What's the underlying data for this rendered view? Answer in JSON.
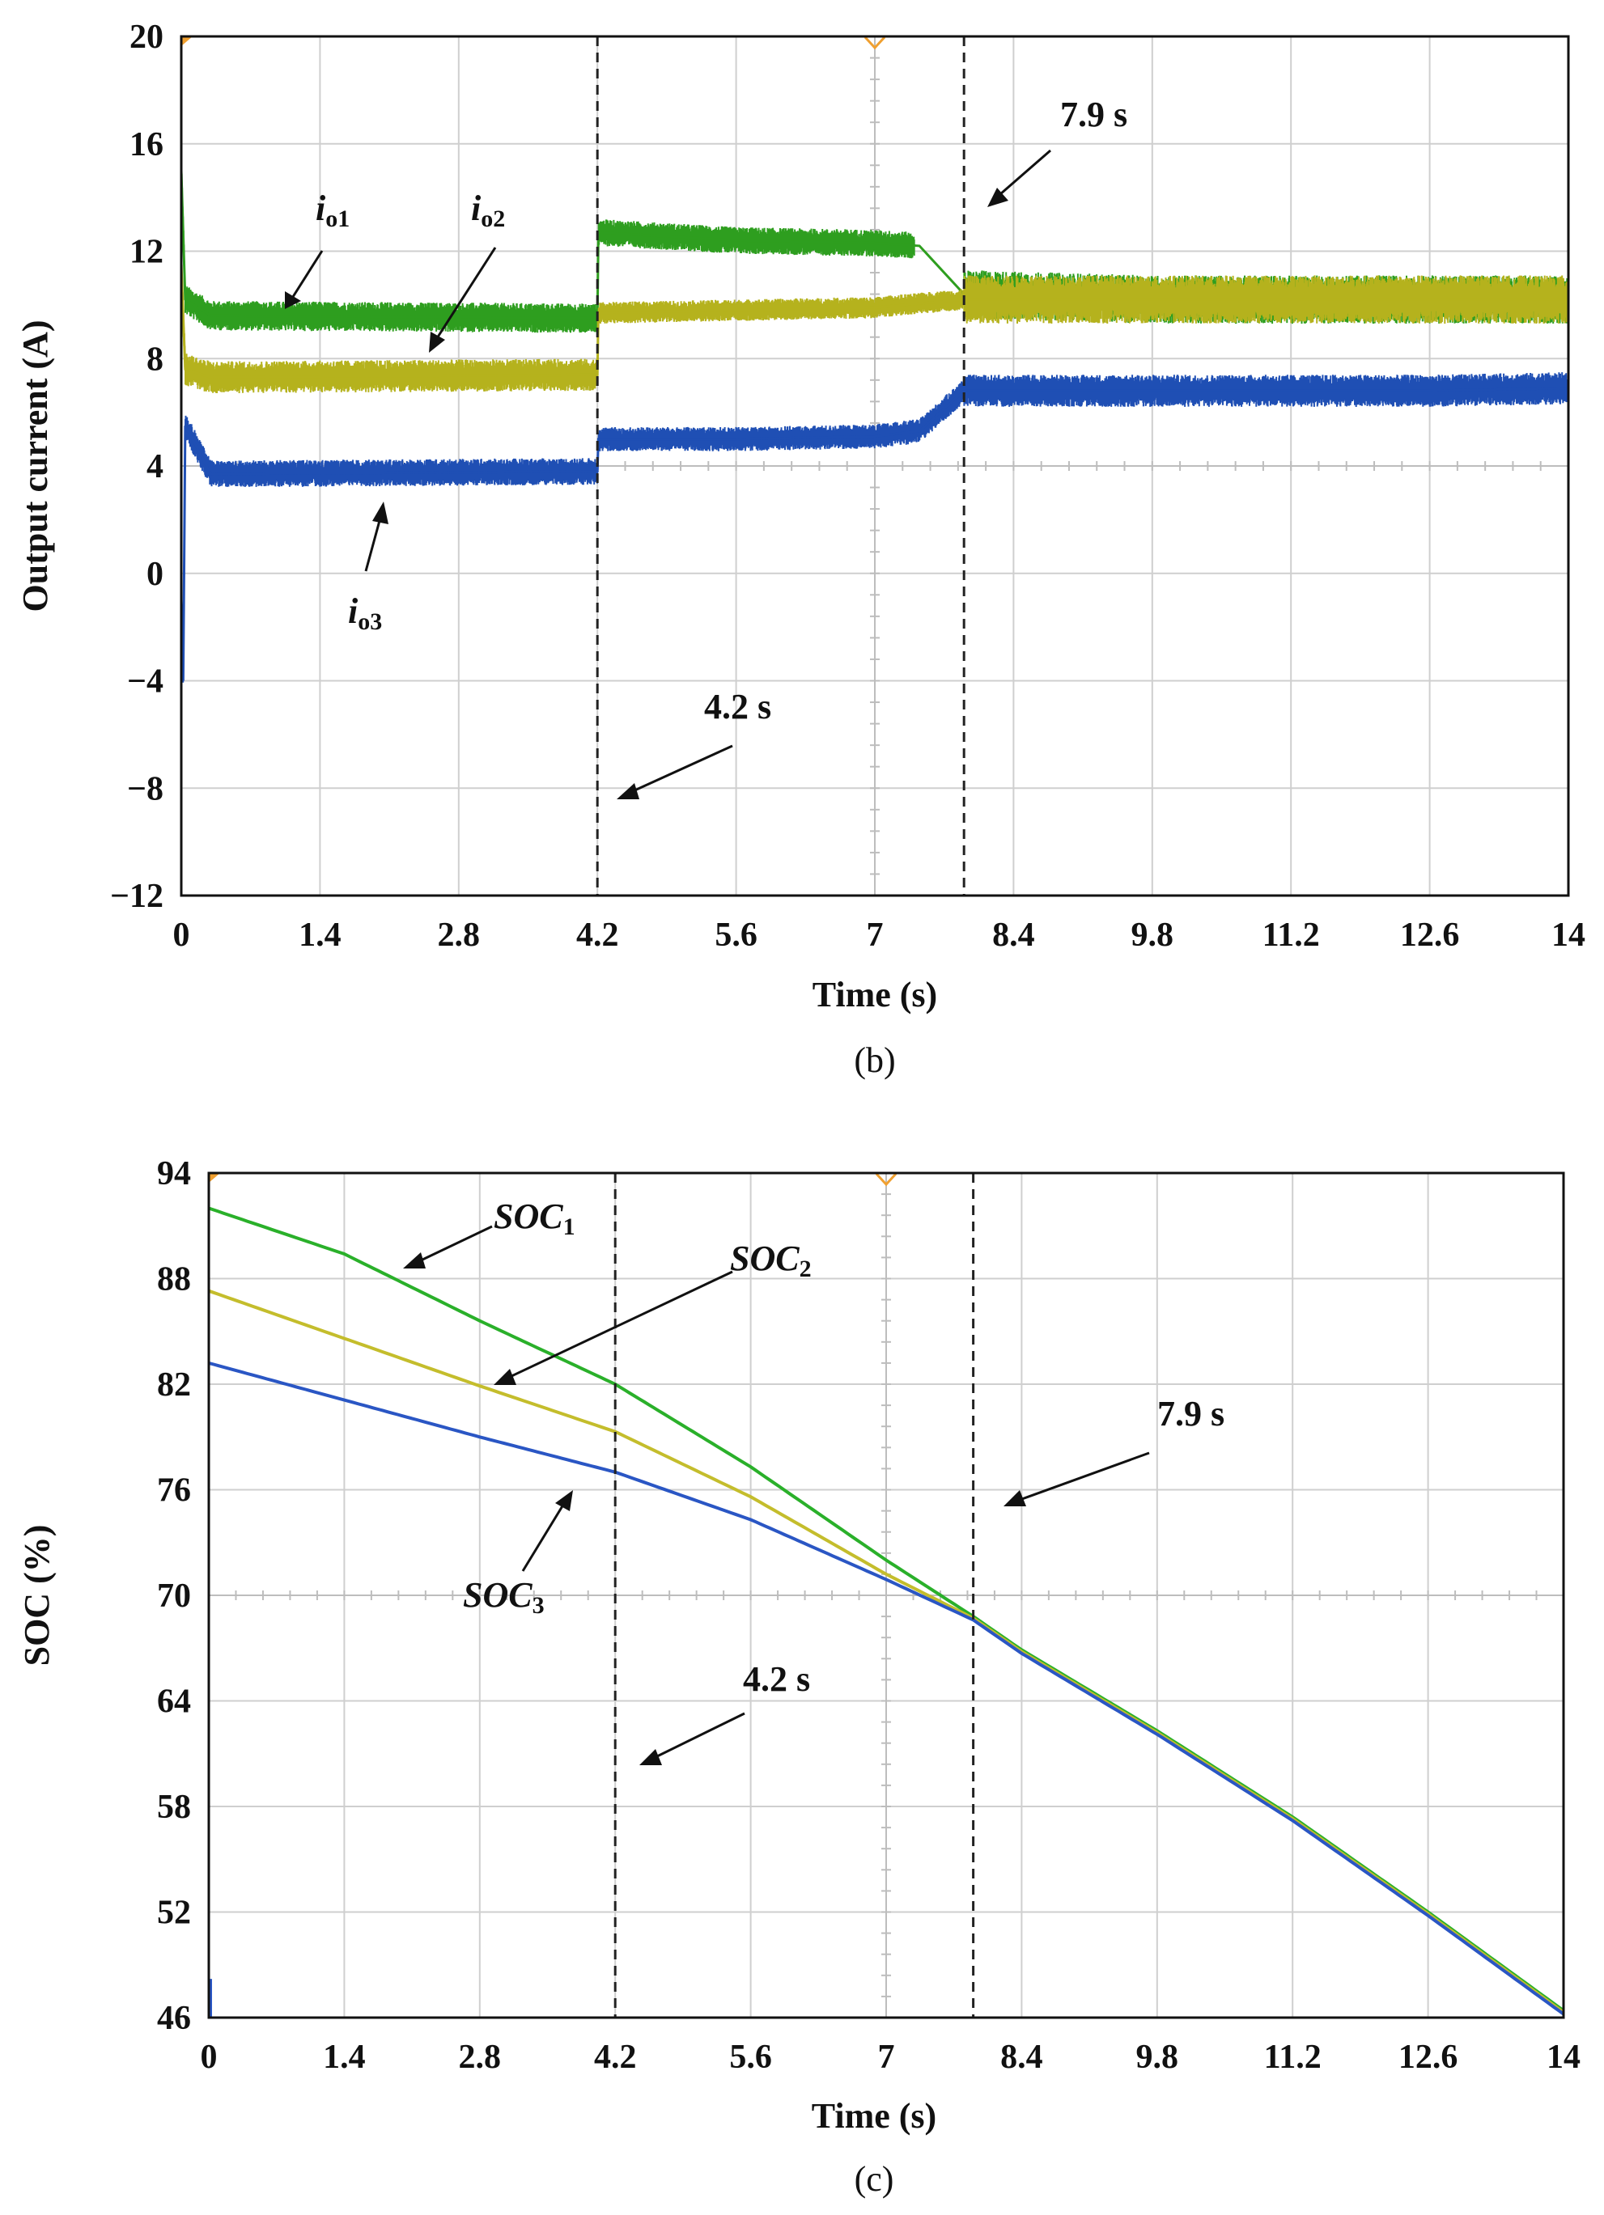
{
  "chart_data": [
    {
      "id": "b",
      "type": "line",
      "caption": "(b)",
      "xlabel": "Time (s)",
      "ylabel": "Output current (A)",
      "xlim": [
        0,
        14
      ],
      "ylim": [
        -12,
        20
      ],
      "x_ticks": [
        "0",
        "1.4",
        "2.8",
        "4.2",
        "5.6",
        "7",
        "8.4",
        "9.8",
        "11.2",
        "12.6",
        "14"
      ],
      "y_ticks": [
        "20",
        "16",
        "12",
        "8",
        "4",
        "0",
        "−4",
        "−8",
        "−12"
      ],
      "grid": true,
      "event_lines": [
        4.2,
        7.9
      ],
      "series": [
        {
          "name": "io1",
          "base": "i",
          "sub": "o1",
          "color": "#2e9e1f",
          "points": [
            [
              0,
              15.0
            ],
            [
              0.04,
              10.2
            ],
            [
              0.3,
              9.6
            ],
            [
              4.2,
              9.5
            ],
            [
              4.21,
              12.7
            ],
            [
              5.6,
              12.4
            ],
            [
              7.0,
              12.3
            ],
            [
              7.45,
              12.2
            ],
            [
              7.9,
              10.4
            ],
            [
              9.8,
              10.2
            ],
            [
              11.2,
              10.2
            ],
            [
              12.6,
              10.2
            ],
            [
              14,
              10.2
            ]
          ],
          "noise": [
            [
              0,
              4.2,
              0.55
            ],
            [
              4.2,
              7.4,
              0.5
            ],
            [
              7.9,
              14,
              0.9
            ]
          ]
        },
        {
          "name": "io2",
          "base": "i",
          "sub": "o2",
          "color": "#b5b21d",
          "points": [
            [
              0,
              11.5
            ],
            [
              0.04,
              7.6
            ],
            [
              0.3,
              7.3
            ],
            [
              4.2,
              7.4
            ],
            [
              4.21,
              9.7
            ],
            [
              5.6,
              9.8
            ],
            [
              7.0,
              9.9
            ],
            [
              7.9,
              10.2
            ],
            [
              9.8,
              10.2
            ],
            [
              14,
              10.2
            ]
          ],
          "noise": [
            [
              0,
              4.2,
              0.6
            ],
            [
              4.2,
              7.9,
              0.4
            ],
            [
              7.9,
              14,
              0.9
            ]
          ]
        },
        {
          "name": "io3",
          "base": "i",
          "sub": "o3",
          "color": "#1f4fb4",
          "points": [
            [
              0,
              -1.0
            ],
            [
              0.02,
              -4.0
            ],
            [
              0.04,
              5.5
            ],
            [
              0.3,
              3.7
            ],
            [
              4.2,
              3.8
            ],
            [
              4.21,
              5.0
            ],
            [
              5.6,
              5.0
            ],
            [
              7.0,
              5.1
            ],
            [
              7.45,
              5.3
            ],
            [
              7.9,
              6.8
            ],
            [
              9.8,
              6.8
            ],
            [
              11.2,
              6.8
            ],
            [
              12.6,
              6.8
            ],
            [
              14,
              6.9
            ]
          ],
          "noise": [
            [
              0,
              4.2,
              0.5
            ],
            [
              4.2,
              7.9,
              0.45
            ],
            [
              7.9,
              14,
              0.6
            ]
          ]
        }
      ],
      "annotations": [
        {
          "id": "label-io1",
          "base": "i",
          "sub": "o1"
        },
        {
          "id": "label-io2",
          "base": "i",
          "sub": "o2"
        },
        {
          "id": "label-io3",
          "base": "i",
          "sub": "o3"
        },
        {
          "id": "label-42",
          "text": "4.2 s"
        },
        {
          "id": "label-79",
          "text": "7.9 s"
        }
      ]
    },
    {
      "id": "c",
      "type": "line",
      "caption": "(c)",
      "xlabel": "Time (s)",
      "ylabel": "SOC (%)",
      "xlim": [
        0,
        14
      ],
      "ylim": [
        46,
        94
      ],
      "x_ticks": [
        "0",
        "1.4",
        "2.8",
        "4.2",
        "5.6",
        "7",
        "8.4",
        "9.8",
        "11.2",
        "12.6",
        "14"
      ],
      "y_ticks": [
        "94",
        "88",
        "82",
        "76",
        "70",
        "64",
        "58",
        "52",
        "46"
      ],
      "grid": true,
      "event_lines": [
        4.2,
        7.9
      ],
      "series": [
        {
          "name": "SOC1",
          "base": "SOC",
          "sub": "1",
          "color": "#2ab02a",
          "points": [
            [
              0,
              92.0
            ],
            [
              1.4,
              89.4
            ],
            [
              2.8,
              85.6
            ],
            [
              4.2,
              82.0
            ],
            [
              5.6,
              77.3
            ],
            [
              7.0,
              72.0
            ],
            [
              7.9,
              68.8
            ],
            [
              8.4,
              66.9
            ],
            [
              9.8,
              62.3
            ],
            [
              11.2,
              57.4
            ],
            [
              12.6,
              52.0
            ],
            [
              14,
              46.4
            ]
          ]
        },
        {
          "name": "SOC2",
          "base": "SOC",
          "sub": "2",
          "color": "#c4bd2c",
          "points": [
            [
              0,
              87.3
            ],
            [
              1.4,
              84.6
            ],
            [
              2.8,
              81.9
            ],
            [
              4.2,
              79.3
            ],
            [
              5.6,
              75.6
            ],
            [
              7.0,
              71.2
            ],
            [
              7.9,
              68.7
            ],
            [
              8.4,
              66.8
            ],
            [
              9.8,
              62.2
            ],
            [
              11.2,
              57.3
            ],
            [
              12.6,
              51.9
            ],
            [
              14,
              46.3
            ]
          ]
        },
        {
          "name": "SOC3",
          "base": "SOC",
          "sub": "3",
          "color": "#2a56c4",
          "points": [
            [
              0,
              83.2
            ],
            [
              1.4,
              81.1
            ],
            [
              2.8,
              79.0
            ],
            [
              4.2,
              77.0
            ],
            [
              5.6,
              74.3
            ],
            [
              7.0,
              70.9
            ],
            [
              7.9,
              68.6
            ],
            [
              8.4,
              66.7
            ],
            [
              9.8,
              62.1
            ],
            [
              11.2,
              57.2
            ],
            [
              12.6,
              51.8
            ],
            [
              14,
              46.2
            ]
          ]
        }
      ],
      "annotations": [
        {
          "id": "label-soc1",
          "base": "SOC",
          "sub": "1"
        },
        {
          "id": "label-soc2",
          "base": "SOC",
          "sub": "2"
        },
        {
          "id": "label-soc3",
          "base": "SOC",
          "sub": "3"
        },
        {
          "id": "label-42",
          "text": "4.2 s"
        },
        {
          "id": "label-79",
          "text": "7.9 s"
        }
      ]
    }
  ]
}
